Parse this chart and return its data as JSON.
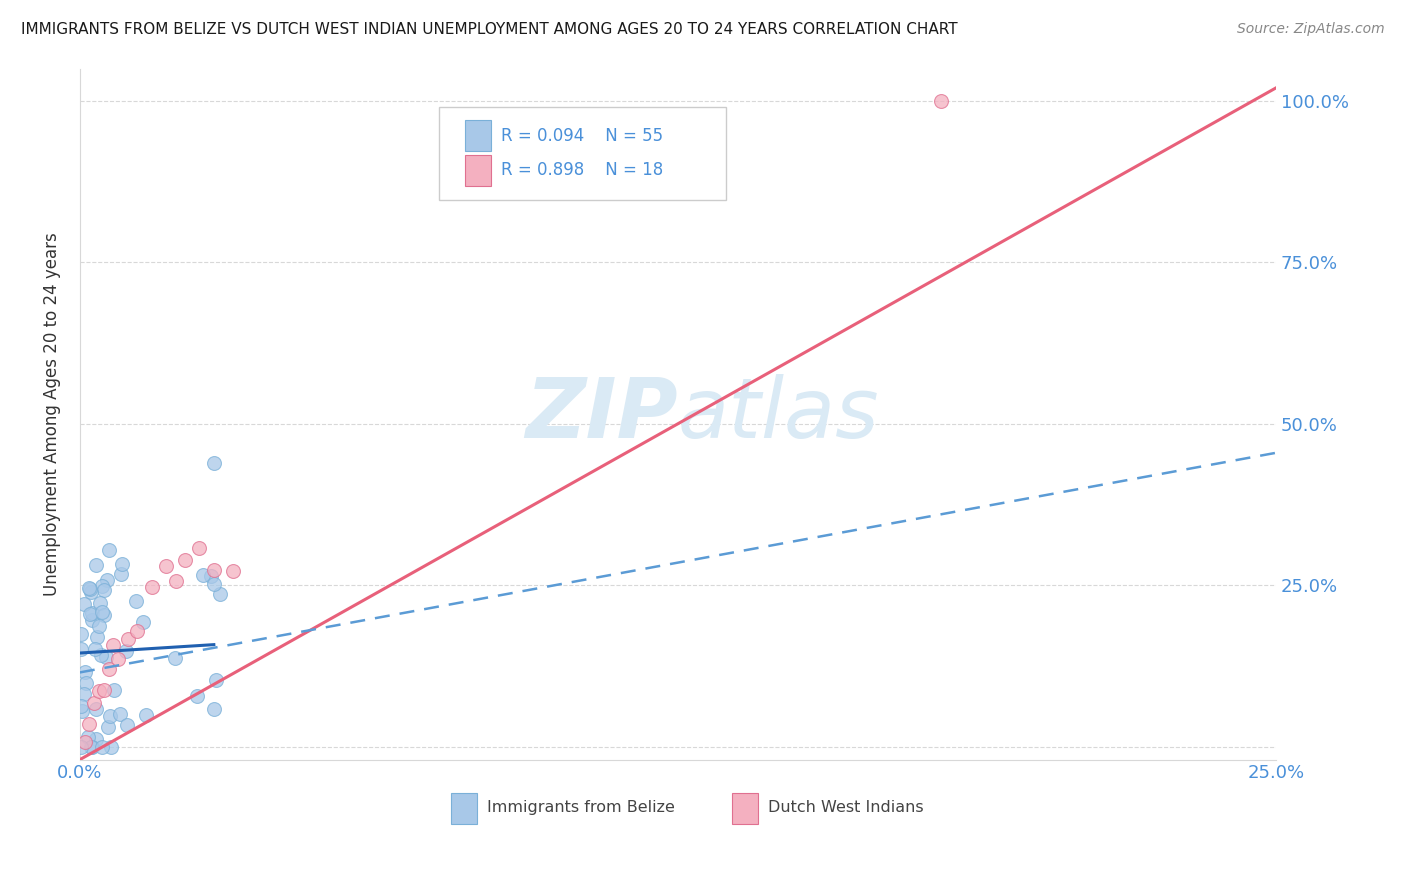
{
  "title": "IMMIGRANTS FROM BELIZE VS DUTCH WEST INDIAN UNEMPLOYMENT AMONG AGES 20 TO 24 YEARS CORRELATION CHART",
  "source": "Source: ZipAtlas.com",
  "ylabel": "Unemployment Among Ages 20 to 24 years",
  "xlim": [
    0.0,
    0.25
  ],
  "ylim": [
    -0.02,
    1.05
  ],
  "xticks": [
    0.0,
    0.05,
    0.1,
    0.15,
    0.2,
    0.25
  ],
  "xtick_labels": [
    "0.0%",
    "",
    "",
    "",
    "",
    "25.0%"
  ],
  "yticks_right": [
    0.0,
    0.25,
    0.5,
    0.75,
    1.0
  ],
  "ytick_labels_right": [
    "",
    "25.0%",
    "50.0%",
    "75.0%",
    "100.0%"
  ],
  "belize_color_face": "#a8c8e8",
  "belize_color_edge": "#7ab0d8",
  "dutch_color_face": "#f4b0c0",
  "dutch_color_edge": "#e07090",
  "trendline_pink_x0": 0.0,
  "trendline_pink_y0": -0.02,
  "trendline_pink_x1": 0.25,
  "trendline_pink_y1": 1.02,
  "trendline_blue_dash_x0": 0.0,
  "trendline_blue_dash_y0": 0.115,
  "trendline_blue_dash_x1": 0.25,
  "trendline_blue_dash_y1": 0.455,
  "trendline_blue_solid_x0": 0.0,
  "trendline_blue_solid_y0": 0.145,
  "trendline_blue_solid_x1": 0.028,
  "trendline_blue_solid_y1": 0.158,
  "background_color": "#ffffff",
  "grid_color": "#d8d8d8",
  "text_color_blue": "#4a90d9",
  "text_color_title": "#1a1a1a",
  "watermark_color": "#daeaf5",
  "legend_R1": "R = 0.094",
  "legend_N1": "N = 55",
  "legend_R2": "R = 0.898",
  "legend_N2": "N = 18",
  "belize_label": "Immigrants from Belize",
  "dutch_label": "Dutch West Indians"
}
